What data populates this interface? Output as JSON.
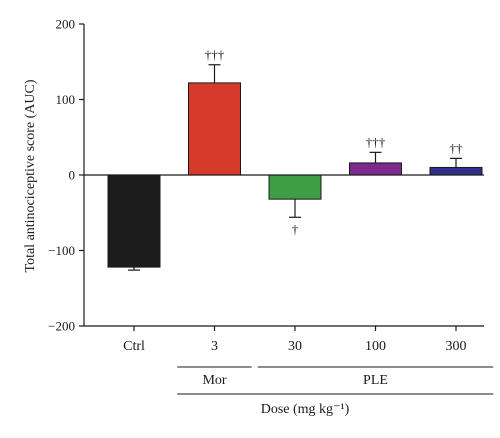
{
  "chart_data": {
    "type": "bar",
    "title": "",
    "ylabel": "Total antinociceptive score (AUC)",
    "xlabel": "Dose (mg kg⁻¹)",
    "ylim": [
      -200,
      200
    ],
    "yticks": [
      -200,
      -100,
      0,
      100,
      200
    ],
    "ytick_labels": [
      "−200",
      "−100",
      "0",
      "100",
      "200"
    ],
    "categories": [
      "Ctrl",
      "3",
      "30",
      "100",
      "300"
    ],
    "values": [
      -122,
      122,
      -32,
      16,
      10
    ],
    "errors": [
      4,
      24,
      24,
      14,
      12
    ],
    "colors": [
      "#1c1c1c",
      "#d63a2a",
      "#3f9d44",
      "#7b2a8e",
      "#2f2f8a"
    ],
    "annotations": [
      "",
      "†††",
      "†",
      "†††",
      "††"
    ],
    "groups": [
      {
        "label": "Mor",
        "from": 1,
        "to": 1
      },
      {
        "label": "PLE",
        "from": 2,
        "to": 4
      }
    ],
    "grid": false,
    "legend": "none"
  }
}
